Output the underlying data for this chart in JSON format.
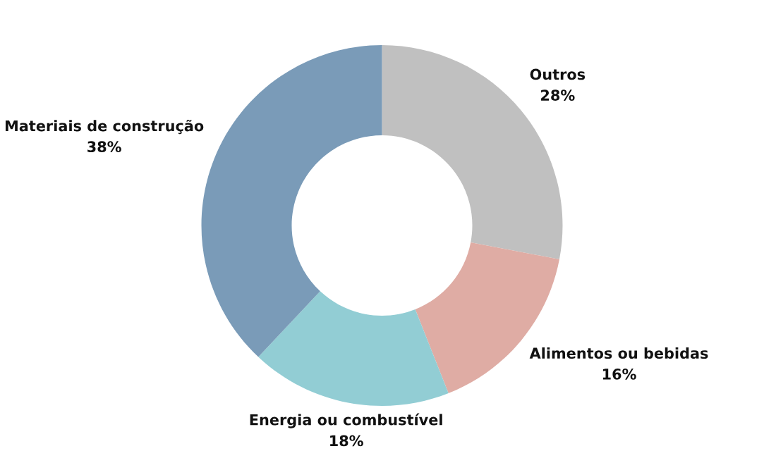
{
  "chart_data": {
    "type": "donut",
    "categories": [
      "Outros",
      "Alimentos ou bebidas",
      "Energia ou combustível",
      "Materiais de construção"
    ],
    "values": [
      28,
      16,
      18,
      38
    ],
    "value_labels": [
      "28%",
      "16%",
      "18%",
      "38%"
    ],
    "colors": [
      "#c0c0c0",
      "#dfaca4",
      "#92cdd4",
      "#7a9bb8"
    ],
    "legend": false
  }
}
